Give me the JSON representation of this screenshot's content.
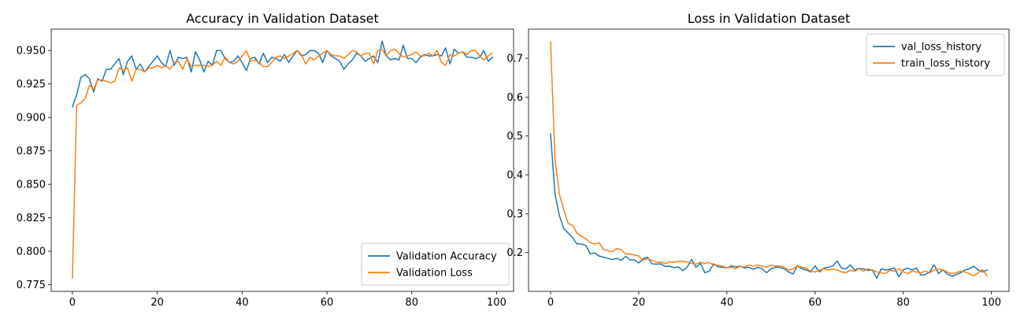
{
  "colors": {
    "blue": "#1f77b4",
    "orange": "#ff7f0e"
  },
  "chart_data": [
    {
      "type": "line",
      "title": "Accuracy in Validation Dataset",
      "xlabel": "",
      "ylabel": "",
      "xlim": [
        -5,
        104
      ],
      "ylim": [
        0.77,
        0.966
      ],
      "xticks": [
        0,
        20,
        40,
        60,
        80,
        100
      ],
      "xtick_labels": [
        "0",
        "20",
        "40",
        "60",
        "80",
        "100"
      ],
      "yticks": [
        0.775,
        0.8,
        0.825,
        0.85,
        0.875,
        0.9,
        0.925,
        0.95
      ],
      "ytick_labels": [
        "0.775",
        "0.800",
        "0.825",
        "0.850",
        "0.875",
        "0.900",
        "0.925",
        "0.950"
      ],
      "grid": false,
      "legend_position": "lower-right",
      "series": [
        {
          "name": "Validation Accuracy",
          "color": "#1f77b4",
          "values": [
            0.908,
            0.917,
            0.93,
            0.932,
            0.929,
            0.919,
            0.929,
            0.927,
            0.936,
            0.936,
            0.94,
            0.944,
            0.932,
            0.942,
            0.946,
            0.936,
            0.94,
            0.934,
            0.938,
            0.942,
            0.946,
            0.941,
            0.938,
            0.95,
            0.939,
            0.945,
            0.944,
            0.945,
            0.934,
            0.949,
            0.943,
            0.934,
            0.942,
            0.939,
            0.95,
            0.95,
            0.944,
            0.941,
            0.942,
            0.946,
            0.941,
            0.935,
            0.944,
            0.945,
            0.94,
            0.948,
            0.941,
            0.945,
            0.944,
            0.942,
            0.947,
            0.941,
            0.946,
            0.95,
            0.946,
            0.947,
            0.95,
            0.95,
            0.948,
            0.941,
            0.95,
            0.946,
            0.944,
            0.942,
            0.936,
            0.94,
            0.943,
            0.948,
            0.946,
            0.942,
            0.944,
            0.946,
            0.941,
            0.957,
            0.946,
            0.943,
            0.944,
            0.943,
            0.954,
            0.944,
            0.944,
            0.941,
            0.945,
            0.947,
            0.946,
            0.946,
            0.947,
            0.946,
            0.952,
            0.94,
            0.951,
            0.948,
            0.949,
            0.945,
            0.945,
            0.944,
            0.945,
            0.95,
            0.942,
            0.945
          ]
        },
        {
          "name": "Validation Loss",
          "color": "#ff7f0e",
          "values": [
            0.78,
            0.909,
            0.911,
            0.914,
            0.924,
            0.921,
            0.928,
            0.928,
            0.927,
            0.926,
            0.927,
            0.937,
            0.935,
            0.937,
            0.927,
            0.936,
            0.936,
            0.934,
            0.937,
            0.937,
            0.939,
            0.937,
            0.939,
            0.936,
            0.941,
            0.942,
            0.936,
            0.944,
            0.938,
            0.939,
            0.939,
            0.939,
            0.938,
            0.939,
            0.942,
            0.939,
            0.945,
            0.941,
            0.94,
            0.942,
            0.946,
            0.95,
            0.942,
            0.943,
            0.941,
            0.938,
            0.938,
            0.941,
            0.945,
            0.946,
            0.944,
            0.946,
            0.948,
            0.95,
            0.947,
            0.94,
            0.945,
            0.943,
            0.946,
            0.948,
            0.95,
            0.947,
            0.946,
            0.946,
            0.944,
            0.947,
            0.95,
            0.949,
            0.946,
            0.948,
            0.948,
            0.94,
            0.95,
            0.951,
            0.946,
            0.95,
            0.951,
            0.948,
            0.945,
            0.946,
            0.947,
            0.949,
            0.946,
            0.946,
            0.948,
            0.946,
            0.95,
            0.941,
            0.939,
            0.947,
            0.946,
            0.948,
            0.949,
            0.947,
            0.95,
            0.95,
            0.946,
            0.943,
            0.946,
            0.948
          ]
        }
      ]
    },
    {
      "type": "line",
      "title": "Loss in Validation Dataset",
      "xlabel": "",
      "ylabel": "",
      "xlim": [
        -5,
        104
      ],
      "ylim": [
        0.1,
        0.775
      ],
      "xticks": [
        0,
        20,
        40,
        60,
        80,
        100
      ],
      "xtick_labels": [
        "0",
        "20",
        "40",
        "60",
        "80",
        "100"
      ],
      "yticks": [
        0.2,
        0.3,
        0.4,
        0.5,
        0.6,
        0.7
      ],
      "ytick_labels": [
        "0.2",
        "0.3",
        "0.4",
        "0.5",
        "0.6",
        "0.7"
      ],
      "grid": false,
      "legend_position": "upper-right",
      "series": [
        {
          "name": "val_loss_history",
          "color": "#1f77b4",
          "values": [
            0.505,
            0.35,
            0.295,
            0.262,
            0.25,
            0.238,
            0.222,
            0.222,
            0.218,
            0.197,
            0.199,
            0.191,
            0.188,
            0.185,
            0.182,
            0.185,
            0.18,
            0.19,
            0.181,
            0.181,
            0.173,
            0.184,
            0.188,
            0.171,
            0.17,
            0.171,
            0.164,
            0.165,
            0.161,
            0.163,
            0.153,
            0.163,
            0.182,
            0.162,
            0.172,
            0.148,
            0.152,
            0.171,
            0.163,
            0.162,
            0.16,
            0.166,
            0.163,
            0.165,
            0.16,
            0.162,
            0.157,
            0.162,
            0.158,
            0.148,
            0.158,
            0.162,
            0.162,
            0.158,
            0.15,
            0.145,
            0.166,
            0.158,
            0.155,
            0.15,
            0.166,
            0.15,
            0.16,
            0.162,
            0.165,
            0.178,
            0.16,
            0.158,
            0.168,
            0.155,
            0.159,
            0.158,
            0.154,
            0.155,
            0.134,
            0.158,
            0.155,
            0.157,
            0.16,
            0.138,
            0.155,
            0.16,
            0.155,
            0.16,
            0.142,
            0.143,
            0.15,
            0.168,
            0.146,
            0.155,
            0.145,
            0.139,
            0.143,
            0.148,
            0.155,
            0.158,
            0.165,
            0.155,
            0.15,
            0.155
          ]
        },
        {
          "name": "train_loss_history",
          "color": "#ff7f0e",
          "values": [
            0.742,
            0.44,
            0.35,
            0.31,
            0.275,
            0.27,
            0.25,
            0.242,
            0.235,
            0.225,
            0.222,
            0.225,
            0.208,
            0.205,
            0.202,
            0.21,
            0.208,
            0.196,
            0.196,
            0.194,
            0.191,
            0.18,
            0.184,
            0.18,
            0.175,
            0.176,
            0.171,
            0.176,
            0.175,
            0.177,
            0.178,
            0.175,
            0.172,
            0.17,
            0.175,
            0.172,
            0.174,
            0.168,
            0.167,
            0.165,
            0.16,
            0.163,
            0.158,
            0.165,
            0.162,
            0.168,
            0.165,
            0.168,
            0.165,
            0.162,
            0.168,
            0.165,
            0.166,
            0.162,
            0.155,
            0.158,
            0.166,
            0.162,
            0.16,
            0.152,
            0.15,
            0.155,
            0.158,
            0.155,
            0.158,
            0.155,
            0.15,
            0.148,
            0.155,
            0.152,
            0.158,
            0.152,
            0.158,
            0.155,
            0.15,
            0.148,
            0.146,
            0.155,
            0.152,
            0.158,
            0.15,
            0.146,
            0.152,
            0.15,
            0.148,
            0.152,
            0.148,
            0.155,
            0.158,
            0.155,
            0.15,
            0.145,
            0.148,
            0.152,
            0.15,
            0.145,
            0.14,
            0.148,
            0.156,
            0.14
          ]
        }
      ]
    }
  ]
}
